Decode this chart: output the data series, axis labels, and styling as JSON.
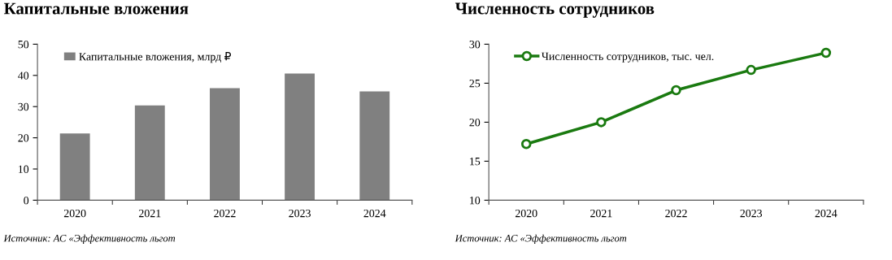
{
  "chart_data": [
    {
      "type": "bar",
      "title": "Капитальные вложения",
      "categories": [
        "2020",
        "2021",
        "2022",
        "2023",
        "2024"
      ],
      "series": [
        {
          "name": "Капитальные вложения, млрд ₽",
          "color": "#808080",
          "values": [
            21.4,
            30.4,
            35.9,
            40.6,
            34.9
          ]
        }
      ],
      "ylim": [
        0,
        50
      ],
      "yticks": [
        0,
        10,
        20,
        30,
        40,
        50
      ],
      "grid": false,
      "legend": "top left",
      "annotations": [
        "Источник: АС «Эффективность льгот"
      ]
    },
    {
      "type": "line",
      "title": "Численность сотрудников",
      "categories": [
        "2020",
        "2021",
        "2022",
        "2023",
        "2024"
      ],
      "series": [
        {
          "name": "Численность сотрудников, тыс. чел.",
          "color": "#1a7a10",
          "values": [
            17.2,
            20.0,
            24.1,
            26.7,
            28.9
          ]
        }
      ],
      "ylim": [
        10,
        30
      ],
      "yticks": [
        10,
        15,
        20,
        25,
        30
      ],
      "grid": false,
      "legend": "top left",
      "marker": "circle",
      "line_style": "solid",
      "annotations": [
        "Источник: АС «Эффективность льгот"
      ]
    }
  ]
}
